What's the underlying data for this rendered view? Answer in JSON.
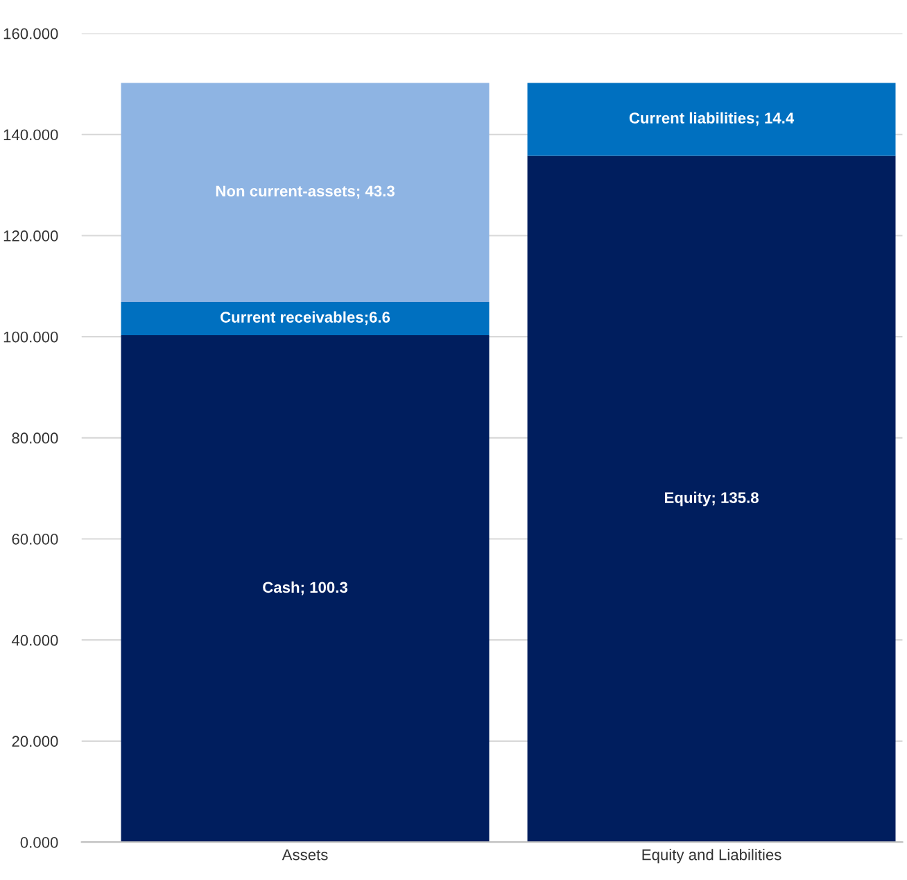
{
  "chart_data": {
    "type": "bar",
    "stacked": true,
    "categories": [
      "Assets",
      "Equity and Liabilities"
    ],
    "series": [
      {
        "color": "#001e5e",
        "values": [
          100.3,
          null
        ],
        "value_labels": [
          "Cash; 100.3",
          null
        ]
      },
      {
        "color": "#0070c0",
        "values": [
          6.6,
          null
        ],
        "value_labels": [
          "Current receivables;6.6",
          null
        ]
      },
      {
        "color": "#8eb4e3",
        "values": [
          43.3,
          null
        ],
        "value_labels": [
          "Non current-assets; 43.3",
          null
        ]
      },
      {
        "color": "#001e5e",
        "values": [
          null,
          135.8
        ],
        "value_labels": [
          null,
          "Equity; 135.8"
        ]
      },
      {
        "color": "#0070c0",
        "values": [
          null,
          14.4
        ],
        "value_labels": [
          null,
          "Current liabilities; 14.4"
        ]
      }
    ],
    "ylim": [
      0,
      160
    ],
    "yticks": [
      {
        "value": 0,
        "label": "0.000"
      },
      {
        "value": 20,
        "label": "20.000"
      },
      {
        "value": 40,
        "label": "40.000"
      },
      {
        "value": 60,
        "label": "60.000"
      },
      {
        "value": 80,
        "label": "80.000"
      },
      {
        "value": 100,
        "label": "100.000"
      },
      {
        "value": 120,
        "label": "120.000"
      },
      {
        "value": 140,
        "label": "140.000"
      },
      {
        "value": 160,
        "label": "160.000"
      }
    ],
    "grid": "y"
  }
}
